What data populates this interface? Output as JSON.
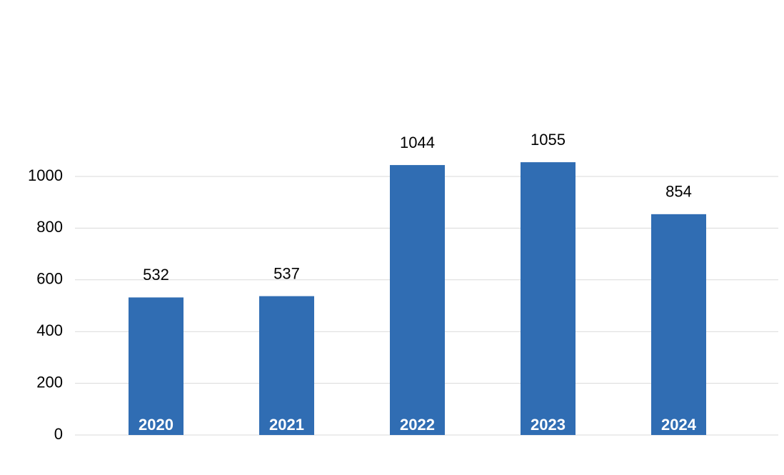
{
  "chart_data": {
    "type": "bar",
    "categories": [
      "2020",
      "2021",
      "2022",
      "2023",
      "2024"
    ],
    "values": [
      532,
      537,
      1044,
      1055,
      854
    ],
    "color": "#306db3",
    "ylim": [
      0,
      1000
    ],
    "yticks": [
      0,
      200,
      400,
      600,
      800,
      1000
    ],
    "grid": true
  }
}
